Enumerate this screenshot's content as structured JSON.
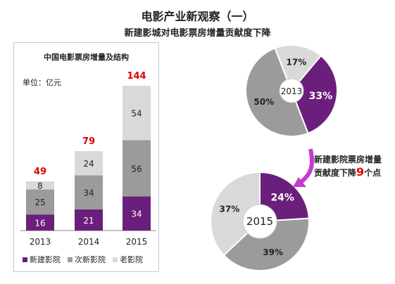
{
  "header": {
    "title": "电影产业新观察（一）",
    "subtitle": "新建影城对电影票房增量贡献度下降"
  },
  "colors": {
    "new": "#6b1f7c",
    "second": "#9b9b9b",
    "old": "#d9d9d9",
    "total_label": "#e00000",
    "panel_border": "#b9cde0"
  },
  "callout": {
    "line1": "新建影院票房增量",
    "line2_prefix": "贡献度下降",
    "line2_number": "9",
    "line2_suffix": "个点"
  },
  "chart_data": [
    {
      "type": "bar",
      "title": "中国电影票房增量及结构",
      "unit": "单位：亿元",
      "categories": [
        "2013",
        "2014",
        "2015"
      ],
      "series": [
        {
          "name": "新建影院",
          "values": [
            16,
            21,
            34
          ]
        },
        {
          "name": "次新影院",
          "values": [
            25,
            34,
            56
          ]
        },
        {
          "name": "老影院",
          "values": [
            8,
            24,
            54
          ]
        }
      ],
      "totals": [
        49,
        79,
        144
      ],
      "stacked": true,
      "grid": false,
      "legend": "bottom"
    },
    {
      "type": "pie",
      "center_label": "2013",
      "slices": [
        {
          "series": "新建影院",
          "value": 33,
          "label": "33%"
        },
        {
          "series": "次新影院",
          "value": 50,
          "label": "50%"
        },
        {
          "series": "老影院",
          "value": 17,
          "label": "17%"
        }
      ]
    },
    {
      "type": "pie",
      "center_label": "2015",
      "slices": [
        {
          "series": "新建影院",
          "value": 24,
          "label": "24%"
        },
        {
          "series": "次新影院",
          "value": 39,
          "label": "39%"
        },
        {
          "series": "老影院",
          "value": 37,
          "label": "37%"
        }
      ]
    }
  ]
}
